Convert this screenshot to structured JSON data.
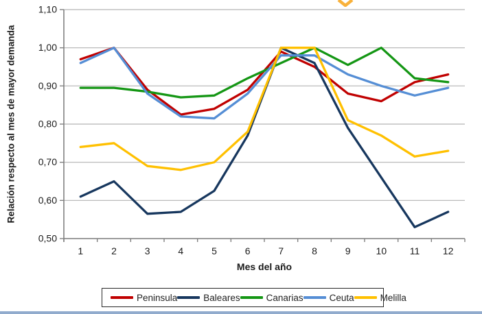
{
  "page": {
    "background": "#ffffff"
  },
  "decorations": {
    "top_cutoff_glyph": {
      "name": "orange-chevron",
      "color": "#f9b13a"
    },
    "bottom_bar_color": "#7e9cc4"
  },
  "chart_data": {
    "type": "line",
    "title": "",
    "xlabel": "Mes del año",
    "ylabel": "Relación respecto al mes de mayor demanda",
    "x": [
      1,
      2,
      3,
      4,
      5,
      6,
      7,
      8,
      9,
      10,
      11,
      12
    ],
    "xtick_labels": [
      "1",
      "2",
      "3",
      "4",
      "5",
      "6",
      "7",
      "8",
      "9",
      "10",
      "11",
      "12"
    ],
    "ylim": [
      0.5,
      1.1
    ],
    "ytick_step": 0.1,
    "ytick_labels": [
      "1,10",
      "1,00",
      "0,90",
      "0,80",
      "0,70",
      "0,60",
      "0,50"
    ],
    "grid": true,
    "grid_color": "#b3b3b3",
    "axis_color": "#808080",
    "legend_position": "bottom",
    "series": [
      {
        "name": "Peninsula",
        "color": "#c00000",
        "values": [
          0.97,
          1.0,
          0.89,
          0.825,
          0.84,
          0.89,
          0.99,
          0.95,
          0.88,
          0.86,
          0.91,
          0.93
        ]
      },
      {
        "name": "Baleares",
        "color": "#17375e",
        "values": [
          0.61,
          0.65,
          0.565,
          0.57,
          0.625,
          0.77,
          1.0,
          0.96,
          0.79,
          0.66,
          0.53,
          0.57
        ]
      },
      {
        "name": "Canarias",
        "color": "#149614",
        "values": [
          0.895,
          0.895,
          0.885,
          0.87,
          0.875,
          0.92,
          0.96,
          1.0,
          0.955,
          1.0,
          0.92,
          0.91
        ]
      },
      {
        "name": "Ceuta",
        "color": "#558ed5",
        "values": [
          0.96,
          1.0,
          0.88,
          0.82,
          0.815,
          0.88,
          0.98,
          0.98,
          0.93,
          0.9,
          0.875,
          0.895
        ]
      },
      {
        "name": "Melilla",
        "color": "#ffc000",
        "values": [
          0.74,
          0.75,
          0.69,
          0.68,
          0.7,
          0.78,
          1.0,
          1.0,
          0.81,
          0.77,
          0.715,
          0.73
        ]
      }
    ]
  }
}
